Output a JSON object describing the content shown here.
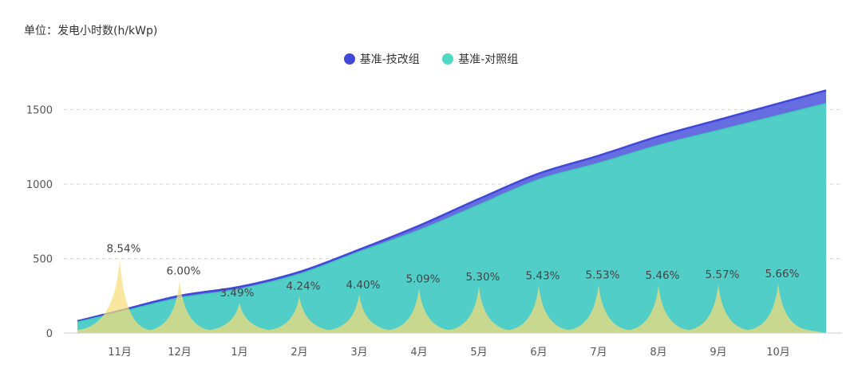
{
  "colors": {
    "series_a": "#4048D8",
    "series_b": "#4FD8C4",
    "percent_area": "#F6DE7A"
  },
  "chart_data": {
    "type": "area",
    "unit_label": "单位：发电小时数(h/kWp)",
    "categories": [
      "11月",
      "12月",
      "1月",
      "2月",
      "3月",
      "4月",
      "5月",
      "6月",
      "7月",
      "8月",
      "9月",
      "10月"
    ],
    "yticks": [
      0,
      500,
      1000,
      1500
    ],
    "ylim": [
      0,
      1700
    ],
    "grid": true,
    "legend_position": "top-center",
    "highlight_category": "9月",
    "series": [
      {
        "name": "基准-技改组",
        "color": "#4048D8",
        "values": [
          150,
          250,
          310,
          410,
          560,
          720,
          900,
          1070,
          1190,
          1320,
          1430,
          1540
        ]
      },
      {
        "name": "基准-对照组",
        "color": "#4FD8C4",
        "values": [
          140,
          235,
          295,
          395,
          545,
          690,
          860,
          1030,
          1140,
          1260,
          1360,
          1460
        ]
      }
    ],
    "percent_labels": [
      "8.54%",
      "6.00%",
      "3.49%",
      "4.24%",
      "4.40%",
      "5.09%",
      "5.30%",
      "5.43%",
      "5.53%",
      "5.46%",
      "5.57%",
      "5.66%"
    ],
    "percent_values": [
      8.54,
      6.0,
      3.49,
      4.24,
      4.4,
      5.09,
      5.3,
      5.43,
      5.53,
      5.46,
      5.57,
      5.66
    ]
  }
}
